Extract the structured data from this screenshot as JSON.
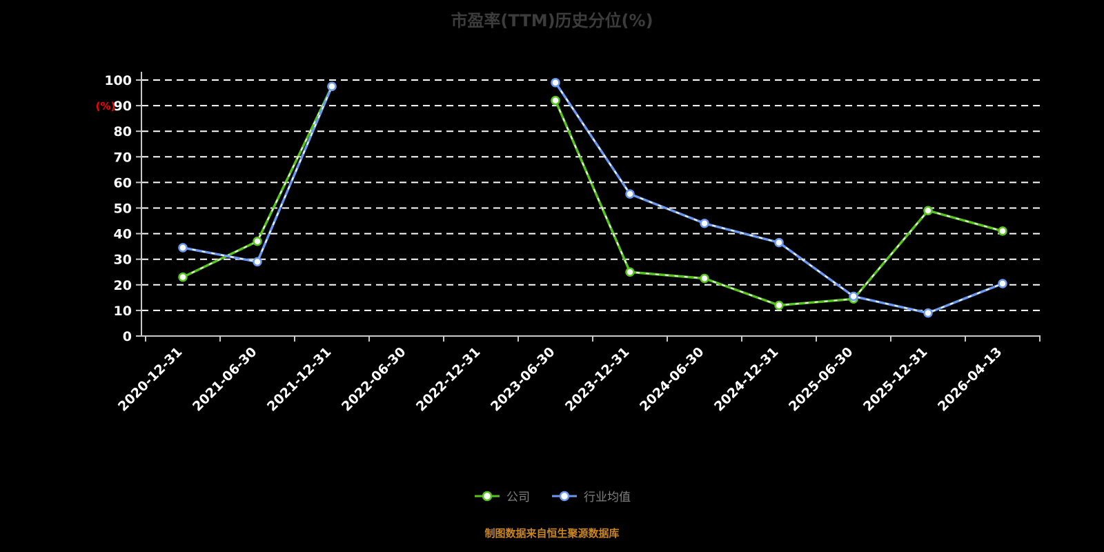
{
  "title": "市盈率(TTM)历史分位(%)",
  "footer": "制图数据来自恒生聚源数据库",
  "colors": {
    "background": "#000000",
    "title": "#3c3c3c",
    "axis": "#c9c9c9",
    "grid": "#ffffff",
    "tick_label": "#ffffff",
    "y_axis_title": "#ff0000",
    "legend_text": "#808080",
    "footer": "#c9851e",
    "company": "#56c41c",
    "industry": "#6b99f0"
  },
  "chart_data": {
    "type": "line",
    "title": "市盈率(TTM)历史分位(%)",
    "xlabel": "",
    "ylabel": "(%)",
    "ylim": [
      0,
      100
    ],
    "ytick_interval": 10,
    "grid": true,
    "legend_position": "bottom",
    "categories": [
      "2020-12-31",
      "2021-06-30",
      "2021-12-31",
      "2022-06-30",
      "2022-12-31",
      "2023-06-30",
      "2023-12-31",
      "2024-06-30",
      "2024-12-31",
      "2025-06-30",
      "2025-12-31",
      "2026-04-13"
    ],
    "series": [
      {
        "name": "公司",
        "color": "#56c41c",
        "values": [
          23,
          37,
          97.5,
          null,
          null,
          92,
          25,
          22.5,
          12,
          14.5,
          49,
          41
        ]
      },
      {
        "name": "行业均值",
        "color": "#6b99f0",
        "values": [
          34.5,
          29,
          97.5,
          null,
          null,
          99,
          55.5,
          44,
          36.5,
          15.5,
          9,
          20.5
        ]
      }
    ]
  }
}
